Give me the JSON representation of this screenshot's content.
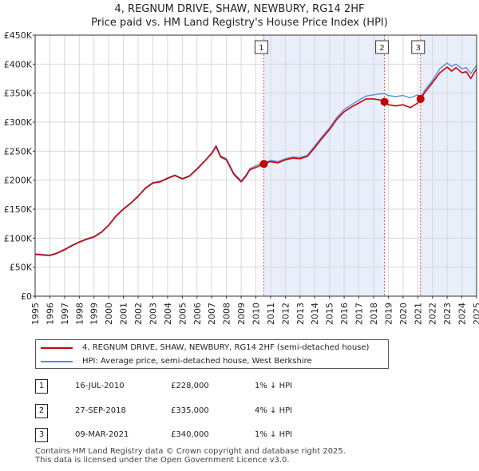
{
  "title_line1": "4, REGNUM DRIVE, SHAW, NEWBURY, RG14 2HF",
  "title_line2": "Price paid vs. HM Land Registry's House Price Index (HPI)",
  "chart_data": {
    "type": "line",
    "xlim": [
      1995,
      2025
    ],
    "ylim": [
      0,
      450000
    ],
    "y_ticks": [
      0,
      50000,
      100000,
      150000,
      200000,
      250000,
      300000,
      350000,
      400000,
      450000
    ],
    "y_tick_labels": [
      "£0",
      "£50K",
      "£100K",
      "£150K",
      "£200K",
      "£250K",
      "£300K",
      "£350K",
      "£400K",
      "£450K"
    ],
    "x_ticks": [
      1995,
      1996,
      1997,
      1998,
      1999,
      2000,
      2001,
      2002,
      2003,
      2004,
      2005,
      2006,
      2007,
      2008,
      2009,
      2010,
      2011,
      2012,
      2013,
      2014,
      2015,
      2016,
      2017,
      2018,
      2019,
      2020,
      2021,
      2022,
      2023,
      2024,
      2025
    ],
    "x_tick_labels": [
      "1995",
      "1996",
      "1997",
      "1998",
      "1999",
      "2000",
      "2001",
      "2002",
      "2003",
      "2004",
      "2005",
      "2006",
      "2007",
      "2008",
      "2009",
      "2010",
      "2011",
      "2012",
      "2013",
      "2014",
      "2015",
      "2016",
      "2017",
      "2018",
      "2019",
      "2020",
      "2021",
      "2022",
      "2023",
      "2024",
      "2025"
    ],
    "grid": true,
    "shaded_ranges": [
      [
        2010.54,
        2018.74
      ],
      [
        2021.19,
        2025.0
      ]
    ],
    "series": [
      {
        "name": "4, REGNUM DRIVE, SHAW, NEWBURY, RG14 2HF (semi-detached house)",
        "color": "#cc0000",
        "x": [
          1995.0,
          1995.5,
          1996.0,
          1996.5,
          1997.0,
          1997.5,
          1998.0,
          1998.5,
          1999.0,
          1999.5,
          2000.0,
          2000.5,
          2001.0,
          2001.5,
          2002.0,
          2002.5,
          2003.0,
          2003.5,
          2004.0,
          2004.5,
          2005.0,
          2005.5,
          2006.0,
          2006.5,
          2007.0,
          2007.3,
          2007.6,
          2008.0,
          2008.5,
          2009.0,
          2009.3,
          2009.6,
          2010.0,
          2010.54,
          2011.0,
          2011.5,
          2012.0,
          2012.5,
          2013.0,
          2013.5,
          2014.0,
          2014.5,
          2015.0,
          2015.5,
          2016.0,
          2016.5,
          2017.0,
          2017.5,
          2018.0,
          2018.5,
          2018.74,
          2019.0,
          2019.5,
          2020.0,
          2020.5,
          2021.0,
          2021.19,
          2021.5,
          2022.0,
          2022.5,
          2023.0,
          2023.3,
          2023.6,
          2024.0,
          2024.3,
          2024.6,
          2025.0
        ],
        "values": [
          72000,
          71000,
          70000,
          74000,
          80000,
          87000,
          93000,
          98000,
          102000,
          110000,
          122000,
          138000,
          150000,
          160000,
          172000,
          186000,
          195000,
          197000,
          203000,
          208000,
          202000,
          207000,
          219000,
          232000,
          246000,
          258000,
          240000,
          235000,
          210000,
          197000,
          206000,
          218000,
          222000,
          228000,
          232000,
          230000,
          235000,
          238000,
          237000,
          241000,
          256000,
          272000,
          287000,
          305000,
          318000,
          326000,
          333000,
          340000,
          340000,
          338000,
          335000,
          330000,
          328000,
          330000,
          325000,
          333000,
          340000,
          352000,
          368000,
          385000,
          395000,
          388000,
          394000,
          385000,
          387000,
          375000,
          392000
        ]
      },
      {
        "name": "HPI: Average price, semi-detached house, West Berkshire",
        "color": "#5b8dd9",
        "x": [
          1995.0,
          1995.5,
          1996.0,
          1996.5,
          1997.0,
          1997.5,
          1998.0,
          1998.5,
          1999.0,
          1999.5,
          2000.0,
          2000.5,
          2001.0,
          2001.5,
          2002.0,
          2002.5,
          2003.0,
          2003.5,
          2004.0,
          2004.5,
          2005.0,
          2005.5,
          2006.0,
          2006.5,
          2007.0,
          2007.3,
          2007.6,
          2008.0,
          2008.5,
          2009.0,
          2009.3,
          2009.6,
          2010.0,
          2010.54,
          2011.0,
          2011.5,
          2012.0,
          2012.5,
          2013.0,
          2013.5,
          2014.0,
          2014.5,
          2015.0,
          2015.5,
          2016.0,
          2016.5,
          2017.0,
          2017.5,
          2018.0,
          2018.5,
          2018.74,
          2019.0,
          2019.5,
          2020.0,
          2020.5,
          2021.0,
          2021.19,
          2021.5,
          2022.0,
          2022.5,
          2023.0,
          2023.3,
          2023.6,
          2024.0,
          2024.3,
          2024.6,
          2025.0
        ],
        "values": [
          73000,
          72000,
          71000,
          75000,
          81000,
          88000,
          94000,
          99000,
          103000,
          111000,
          123000,
          139000,
          151000,
          161000,
          173000,
          187000,
          196000,
          198000,
          204000,
          209000,
          203000,
          208000,
          220000,
          233000,
          247000,
          260000,
          242000,
          237000,
          212000,
          199000,
          208000,
          220000,
          225000,
          230000,
          234000,
          232000,
          237000,
          240000,
          239000,
          243000,
          259000,
          275000,
          290000,
          308000,
          322000,
          330000,
          338000,
          345000,
          347000,
          349000,
          349000,
          346000,
          344000,
          346000,
          342000,
          347000,
          343000,
          356000,
          372000,
          392000,
          402000,
          396000,
          400000,
          392000,
          394000,
          384000,
          398000
        ]
      }
    ],
    "sales": [
      {
        "label": "1",
        "x": 2010.54,
        "value": 228000
      },
      {
        "label": "2",
        "x": 2018.74,
        "value": 335000
      },
      {
        "label": "3",
        "x": 2021.19,
        "value": 340000
      }
    ]
  },
  "legend": {
    "property_label": "4, REGNUM DRIVE, SHAW, NEWBURY, RG14 2HF (semi-detached house)",
    "hpi_label": "HPI: Average price, semi-detached house, West Berkshire"
  },
  "transactions": [
    {
      "num": "1",
      "date": "16-JUL-2010",
      "price": "£228,000",
      "hpi": "1% ↓ HPI"
    },
    {
      "num": "2",
      "date": "27-SEP-2018",
      "price": "£335,000",
      "hpi": "4% ↓ HPI"
    },
    {
      "num": "3",
      "date": "09-MAR-2021",
      "price": "£340,000",
      "hpi": "1% ↓ HPI"
    }
  ],
  "footer_line1": "Contains HM Land Registry data © Crown copyright and database right 2025.",
  "footer_line2": "This data is licensed under the Open Government Licence v3.0."
}
